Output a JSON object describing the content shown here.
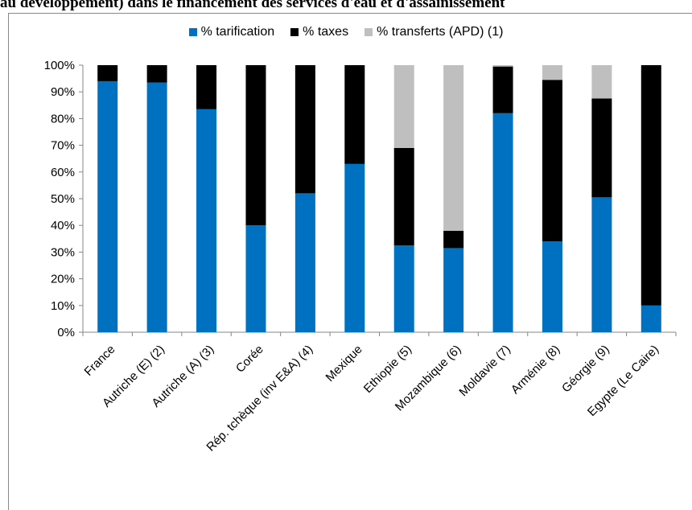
{
  "title": "au développement) dans le financement des services d'eau et d'assainissement",
  "legend": [
    {
      "label": "% tarification",
      "color": "#0070C0"
    },
    {
      "label": "% taxes",
      "color": "#000000"
    },
    {
      "label": "% transferts (APD) (1)",
      "color": "#BFBFBF"
    }
  ],
  "chart_data": {
    "type": "bar",
    "stacked": true,
    "categories": [
      "France",
      "Autriche (E) (2)",
      "Autriche (A) (3)",
      "Corée",
      "Rép. tchèque (inv E&A) (4)",
      "Mexique",
      "Ethiopie (5)",
      "Mozambique (6)",
      "Moldavie (7)",
      "Arménie (8)",
      "Géorgie (9)",
      "Egypte (Le Caire)"
    ],
    "series": [
      {
        "name": "% tarification",
        "color": "#0070C0",
        "values": [
          94,
          93.5,
          83.5,
          40,
          52,
          63,
          32.5,
          31.5,
          82,
          34,
          50.5,
          10
        ]
      },
      {
        "name": "% taxes",
        "color": "#000000",
        "values": [
          6,
          6.5,
          16.5,
          60,
          48,
          37,
          36.5,
          6.5,
          17.5,
          60.5,
          37,
          90
        ]
      },
      {
        "name": "% transferts (APD) (1)",
        "color": "#BFBFBF",
        "values": [
          0,
          0,
          0,
          0,
          0,
          0,
          31,
          62,
          0.5,
          5.5,
          12.5,
          0
        ]
      }
    ],
    "yticks": [
      "0%",
      "10%",
      "20%",
      "30%",
      "40%",
      "50%",
      "60%",
      "70%",
      "80%",
      "90%",
      "100%"
    ],
    "ylim": [
      0,
      100
    ],
    "grid": false,
    "legend_position": "top"
  }
}
